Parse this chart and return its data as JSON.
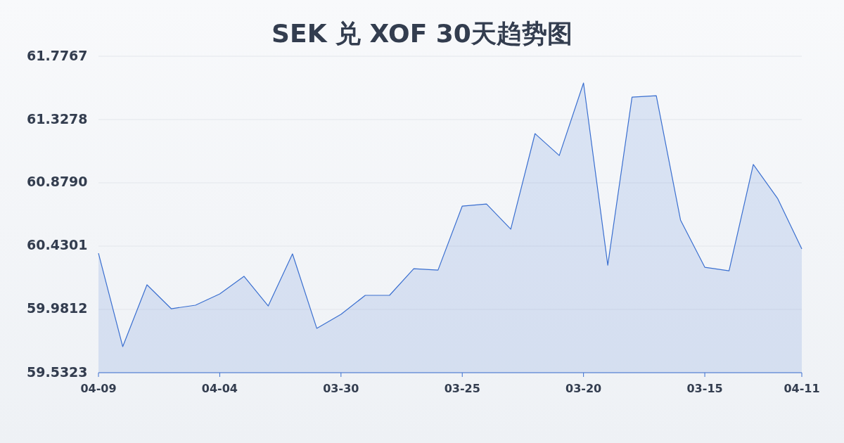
{
  "chart_data": {
    "type": "area",
    "title": "SEK 兑 XOF 30天趋势图",
    "categories": [
      "04-09",
      null,
      null,
      null,
      null,
      "04-04",
      null,
      null,
      null,
      null,
      "03-30",
      null,
      null,
      null,
      null,
      "03-25",
      null,
      null,
      null,
      null,
      "03-20",
      null,
      null,
      null,
      null,
      "03-15",
      null,
      null,
      null,
      "04-11"
    ],
    "values": [
      60.38,
      59.717,
      60.156,
      59.986,
      60.011,
      60.091,
      60.216,
      60.006,
      60.375,
      59.847,
      59.946,
      60.081,
      60.081,
      60.27,
      60.26,
      60.714,
      60.729,
      60.55,
      61.228,
      61.073,
      61.587,
      60.295,
      61.487,
      61.497,
      60.615,
      60.28,
      60.255,
      61.009,
      60.769,
      60.41
    ],
    "color": "#3a6fd0",
    "ylim": [
      59.5323,
      61.7767
    ],
    "yticks": [
      59.5323,
      59.9812,
      60.4301,
      {
        "value": 60.879,
        "label": "60.8790"
      },
      61.3278,
      61.7767
    ],
    "grid": "y"
  }
}
